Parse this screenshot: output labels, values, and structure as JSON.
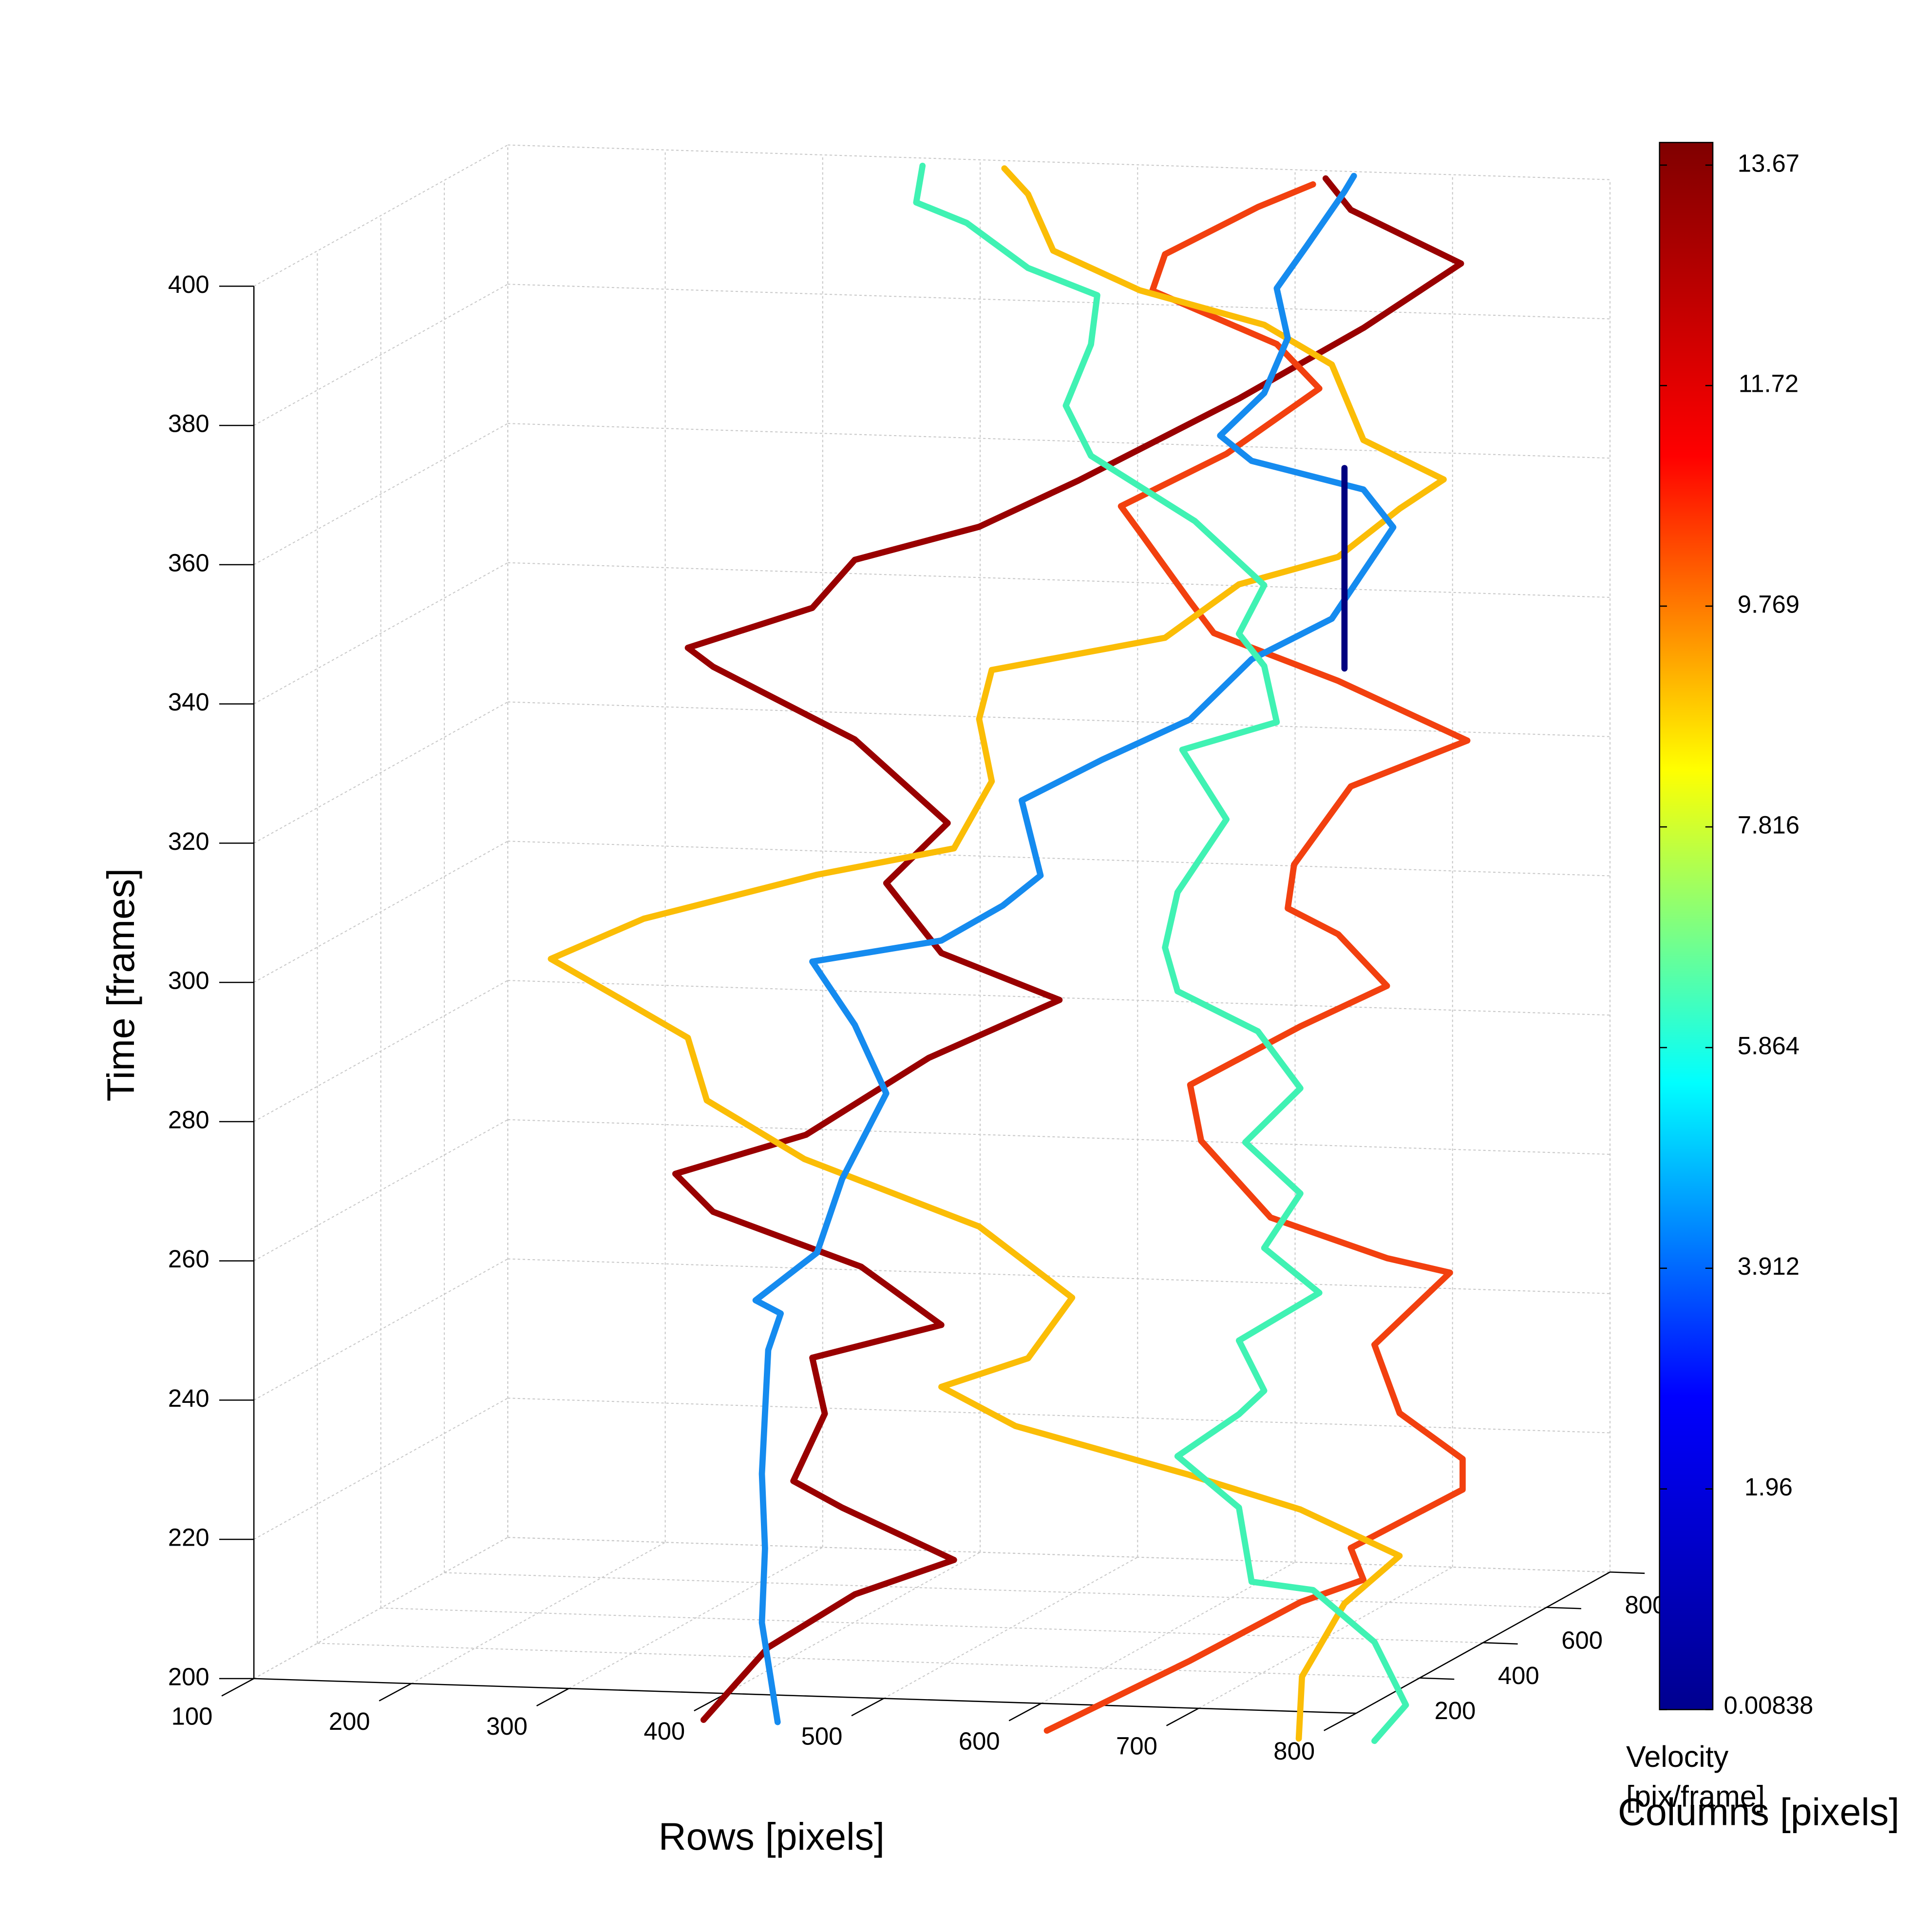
{
  "chart_data": {
    "type": "line3d",
    "xlabel": "Rows [pixels]",
    "ylabel": "Columns [pixels]",
    "zlabel": "Time [frames]",
    "xlim": [
      100,
      800
    ],
    "ylim": [
      0,
      800
    ],
    "zlim": [
      200,
      400
    ],
    "xticks": [
      100,
      200,
      300,
      400,
      500,
      600,
      700,
      800
    ],
    "yticks": [
      200,
      400,
      600,
      800
    ],
    "zticks": [
      200,
      220,
      240,
      260,
      280,
      300,
      320,
      340,
      360,
      380,
      400
    ],
    "grid": true,
    "series": [
      {
        "color": "#990000",
        "x": [
          305,
          346,
          401,
          464,
          393,
          362,
          382,
          374,
          456,
          405,
          311,
          287,
          370,
          448,
          531,
          456,
          421,
          460,
          401,
          311,
          295,
          374,
          401,
          480,
          543,
          645,
          724,
          786,
          716,
          700
        ],
        "y": [
          400,
          400,
          400,
          400,
          400,
          400,
          400,
          400,
          400,
          400,
          400,
          400,
          400,
          400,
          400,
          400,
          400,
          400,
          400,
          400,
          400,
          400,
          400,
          400,
          400,
          400,
          400,
          400,
          400,
          400
        ],
        "z": [
          185.4,
          196.1,
          204.1,
          209.5,
          216.5,
          220.1,
          229.9,
          237.9,
          243.2,
          251.2,
          258.4,
          263.7,
          269.9,
          281.5,
          290.4,
          296.6,
          306.4,
          315.3,
          326.9,
          336.7,
          339.3,
          345.6,
          352.7,
          358,
          365.1,
          377.6,
          388.3,
          398,
          405.2,
          409.6
        ]
      },
      {
        "color": "#f2400f",
        "x": [
          523,
          614,
          684,
          724,
          716,
          787,
          787,
          747,
          731,
          779,
          739,
          665,
          621,
          614,
          684,
          739,
          708,
          676,
          680,
          716,
          790,
          708,
          629,
          614,
          582,
          570,
          637,
          696,
          669,
          590,
          598,
          657,
          692
        ],
        "y": [
          400,
          400,
          400,
          400,
          400,
          400,
          400,
          400,
          400,
          400,
          400,
          400,
          400,
          400,
          400,
          400,
          400,
          400,
          400,
          400,
          400,
          400,
          400,
          400,
          400,
          400,
          400,
          400,
          400,
          400,
          400,
          400,
          400
        ],
        "z": [
          185.4,
          196.1,
          205,
          208.5,
          213,
          221.9,
          226.3,
          232.6,
          242.3,
          253,
          254.8,
          260.1,
          270.8,
          278.8,
          287.7,
          293.9,
          301.1,
          304.6,
          310.9,
          322.4,
          329.5,
          337.5,
          343.8,
          348.2,
          358,
          361.6,
          369.6,
          379.4,
          385.6,
          392.7,
          398,
          405.2,
          408.7
        ]
      },
      {
        "color": "#fbbd06",
        "x": [
          683,
          685,
          712,
          747,
          684,
          613,
          503,
          456,
          511,
          539,
          480,
          369,
          307,
          295,
          252,
          208,
          267,
          377,
          464,
          488,
          480,
          488,
          598,
          645,
          708,
          747,
          775,
          724,
          704,
          661,
          582,
          527,
          511,
          496
        ],
        "y": [
          400,
          400,
          400,
          400,
          400,
          400,
          400,
          400,
          400,
          400,
          400,
          400,
          400,
          400,
          400,
          400,
          400,
          400,
          400,
          400,
          400,
          400,
          400,
          400,
          400,
          400,
          400,
          400,
          400,
          400,
          400,
          400,
          400,
          400
        ],
        "z": [
          185.4,
          194.3,
          205,
          212.1,
          218.3,
          222.8,
          229,
          234.3,
          238.8,
          247.7,
          257.5,
          266.4,
          274.4,
          283.3,
          288.6,
          294,
          300.2,
          307.3,
          311.7,
          321.5,
          330.4,
          337.5,
          342.9,
          350.9,
          355.3,
          362.5,
          366.9,
          372.2,
          382.9,
          388.3,
          392.7,
          398,
          406,
          409.6
        ]
      },
      {
        "color": "#158bef",
        "x": [
          352,
          342,
          344,
          342,
          346,
          354,
          338,
          377,
          393,
          421,
          401,
          374,
          456,
          495,
          519,
          507,
          558,
          614,
          653,
          704,
          743,
          724,
          653,
          633,
          661,
          676,
          669,
          688,
          712,
          718
        ],
        "y": [
          400,
          400,
          400,
          400,
          400,
          400,
          400,
          400,
          400,
          400,
          400,
          400,
          400,
          400,
          400,
          400,
          400,
          400,
          400,
          400,
          400,
          400,
          400,
          400,
          400,
          400,
          400,
          400,
          400,
          400
        ],
        "z": [
          185.4,
          199.6,
          210.3,
          221,
          238.8,
          244.1,
          245.9,
          253,
          263.7,
          276.2,
          285.9,
          294.8,
          298.4,
          303.7,
          308.2,
          318.9,
          325.1,
          331.3,
          340.2,
          346.4,
          359.8,
          365.1,
          368.7,
          372.2,
          378.5,
          386.5,
          393.6,
          399.8,
          407.8,
          410.1
        ]
      },
      {
        "color": "#40f2b3",
        "x": [
          731,
          751,
          731,
          692,
          653,
          645,
          606,
          645,
          661,
          645,
          696,
          661,
          684,
          649,
          684,
          657,
          606,
          598,
          606,
          637,
          609,
          669,
          661,
          645,
          661,
          617,
          551,
          535,
          551,
          555,
          511,
          472,
          440,
          444
        ],
        "y": [
          400,
          400,
          400,
          400,
          400,
          400,
          400,
          400,
          400,
          400,
          400,
          400,
          400,
          400,
          400,
          400,
          400,
          400,
          400,
          400,
          400,
          400,
          400,
          400,
          400,
          400,
          400,
          400,
          400,
          400,
          400,
          400,
          400,
          400
        ],
        "z": [
          185.4,
          190.7,
          199.6,
          206.8,
          207.7,
          218.3,
          225.4,
          231.7,
          235.2,
          242.3,
          249.5,
          255.7,
          263.7,
          270.8,
          278.8,
          286.8,
          292.2,
          298.4,
          306.4,
          317.1,
          326.9,
          331.3,
          339.3,
          343.8,
          350.9,
          359.8,
          368.7,
          375.8,
          384.7,
          391.8,
          395.4,
          401.6,
          404.3,
          409.6
        ]
      },
      {
        "color": "#00007f",
        "x": [
          712,
          712
        ],
        "y": [
          400,
          400
        ],
        "z": [
          368.1,
          339.3
        ]
      }
    ],
    "colorbar": {
      "label": [
        "Velocity",
        "[pix/frame]"
      ],
      "clim": [
        0.00838,
        13.87
      ],
      "ticks": [
        0.00838,
        1.96,
        3.912,
        5.864,
        7.816,
        9.769,
        11.72,
        13.67
      ],
      "colormap": [
        "#00008f",
        "#0000ff",
        "#00ffff",
        "#ffff00",
        "#ff0000",
        "#800000"
      ]
    }
  }
}
